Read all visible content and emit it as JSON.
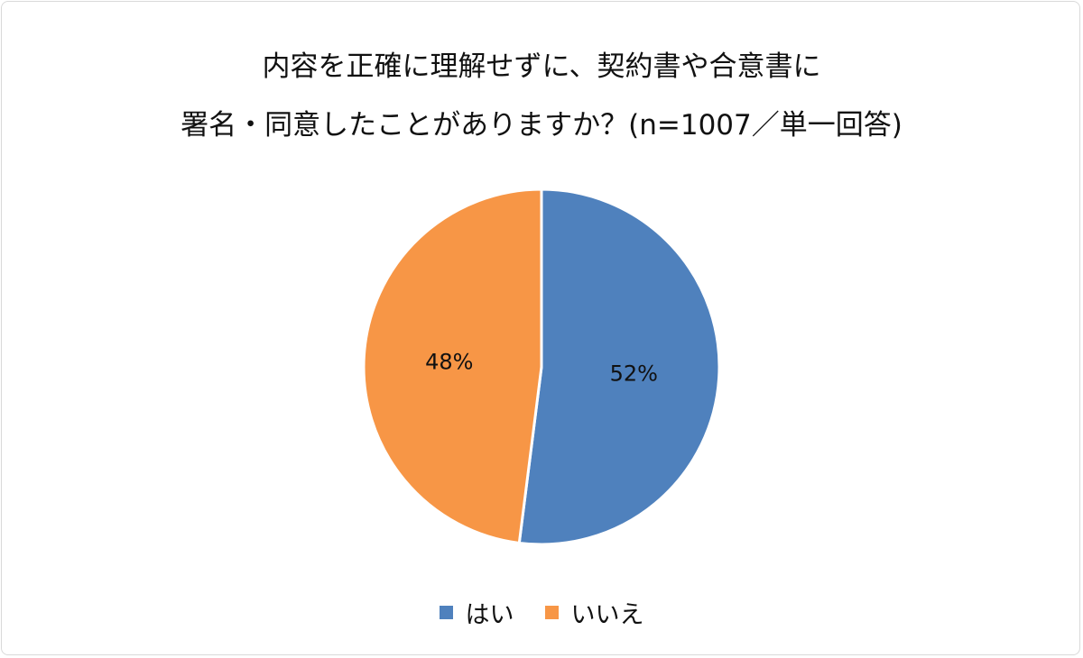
{
  "chart_data": {
    "type": "pie",
    "title": [
      "内容を正確に理解せずに、契約書や合意書に",
      "署名・同意したことがありますか？(n=1007／単一回答)"
    ],
    "categories": [
      "はい",
      "いいえ"
    ],
    "values": [
      52,
      48
    ],
    "data_labels": [
      "52%",
      "48%"
    ],
    "colors": [
      "#4F81BD",
      "#F79646"
    ],
    "legend": "bottom"
  }
}
